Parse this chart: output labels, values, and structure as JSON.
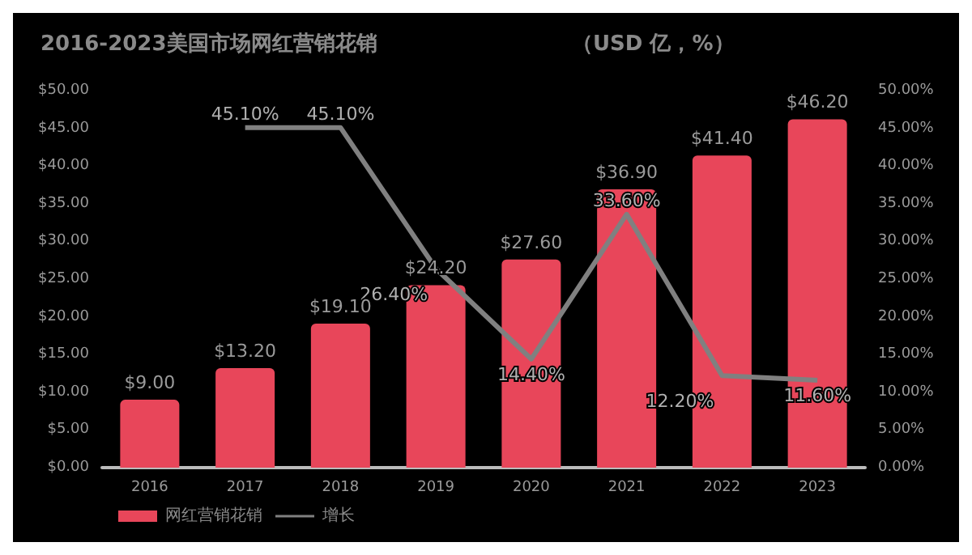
{
  "chart_data": {
    "type": "bar",
    "title": "2016-2023美国市场网红营销花销",
    "subtitle": "（USD 亿，%）",
    "categories": [
      "2016",
      "2017",
      "2018",
      "2019",
      "2020",
      "2021",
      "2022",
      "2023"
    ],
    "series": [
      {
        "name": "网红营销花销",
        "type": "bar",
        "color": "#e8465a",
        "values": [
          9.0,
          13.2,
          19.1,
          24.2,
          27.6,
          36.9,
          41.4,
          46.2
        ],
        "value_labels": [
          "$9.00",
          "$13.20",
          "$19.10",
          "$24.20",
          "$27.60",
          "$36.90",
          "$41.40",
          "$46.20"
        ]
      },
      {
        "name": "增长",
        "type": "line",
        "axis": "y2",
        "color": "#808080",
        "values": [
          null,
          45.1,
          45.1,
          26.4,
          14.4,
          33.6,
          12.2,
          11.6
        ],
        "value_labels": [
          null,
          "45.10%",
          "45.10%",
          "26.40%",
          "14.40%",
          "33.60%",
          "12.20%",
          "11.60%"
        ]
      }
    ],
    "ylim": [
      0,
      50
    ],
    "yticks": [
      {
        "value": 0,
        "label": "$0.00"
      },
      {
        "value": 5,
        "label": "$5.00"
      },
      {
        "value": 10,
        "label": "$10.00"
      },
      {
        "value": 15,
        "label": "$15.00"
      },
      {
        "value": 20,
        "label": "$20.00"
      },
      {
        "value": 25,
        "label": "$25.00"
      },
      {
        "value": 30,
        "label": "$30.00"
      },
      {
        "value": 35,
        "label": "$35.00"
      },
      {
        "value": 40,
        "label": "$40.00"
      },
      {
        "value": 45,
        "label": "$45.00"
      },
      {
        "value": 50,
        "label": "$50.00"
      }
    ],
    "y2lim": [
      0,
      50
    ],
    "y2ticks": [
      {
        "value": 0,
        "label": "0.00%"
      },
      {
        "value": 5,
        "label": "5.00%"
      },
      {
        "value": 10,
        "label": "10.00%"
      },
      {
        "value": 15,
        "label": "15.00%"
      },
      {
        "value": 20,
        "label": "20.00%"
      },
      {
        "value": 25,
        "label": "25.00%"
      },
      {
        "value": 30,
        "label": "30.00%"
      },
      {
        "value": 35,
        "label": "35.00%"
      },
      {
        "value": 40,
        "label": "40.00%"
      },
      {
        "value": 45,
        "label": "45.00%"
      },
      {
        "value": 50,
        "label": "50.00%"
      }
    ],
    "grid": false,
    "legend": "bottom left",
    "marker": "none",
    "line_style": "solid"
  }
}
